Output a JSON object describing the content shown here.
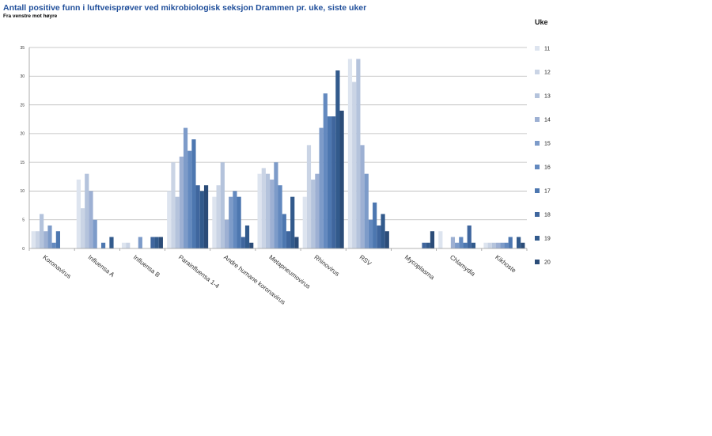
{
  "header": {
    "title": "Antall positive funn i luftveisprøver ved mikrobiologisk seksjon Drammen pr. uke, siste uker",
    "subtitle": "Fra venstre mot høyre"
  },
  "legend": {
    "title": "Uke"
  },
  "chart_data": {
    "type": "bar",
    "title": "Antall positive funn i luftveisprøver ved mikrobiologisk seksjon Drammen pr. uke, siste uker",
    "subtitle": "Fra venstre mot høyre",
    "xlabel": "",
    "ylabel": "",
    "ylim": [
      0,
      35
    ],
    "yticks": [
      0,
      5,
      10,
      15,
      20,
      25,
      30,
      35
    ],
    "grid": true,
    "legend_title": "Uke",
    "legend_position": "right",
    "categories": [
      "Koronavirus",
      "Influensa A",
      "Influensa B",
      "Parainfluensa 1-4",
      "Andre humane koronavirus",
      "Metapneumovirus",
      "Rhinovirus",
      "RSV",
      "Mycoplasma",
      "Chlamydia",
      "Kikhoste"
    ],
    "series": [
      {
        "name": "11",
        "color": "#dde4ef",
        "values": [
          3,
          12,
          1,
          10,
          9,
          13,
          9,
          33,
          0,
          3,
          1
        ]
      },
      {
        "name": "12",
        "color": "#cad4e5",
        "values": [
          3,
          7,
          1,
          15,
          11,
          14,
          18,
          29,
          0,
          0,
          1
        ]
      },
      {
        "name": "13",
        "color": "#b4c3dc",
        "values": [
          6,
          13,
          0,
          9,
          15,
          13,
          12,
          33,
          0,
          0,
          1
        ]
      },
      {
        "name": "14",
        "color": "#9db0d3",
        "values": [
          3,
          10,
          0,
          16,
          5,
          12,
          13,
          18,
          0,
          2,
          1
        ]
      },
      {
        "name": "15",
        "color": "#7d9bc9",
        "values": [
          4,
          5,
          2,
          21,
          9,
          15,
          21,
          13,
          0,
          1,
          1
        ]
      },
      {
        "name": "16",
        "color": "#6389bf",
        "values": [
          1,
          0,
          0,
          17,
          10,
          11,
          27,
          5,
          0,
          2,
          1
        ]
      },
      {
        "name": "17",
        "color": "#4d77b0",
        "values": [
          3,
          1,
          0,
          19,
          9,
          6,
          23,
          8,
          0,
          1,
          2
        ]
      },
      {
        "name": "18",
        "color": "#3f669e",
        "values": [
          0,
          0,
          2,
          11,
          2,
          3,
          23,
          4,
          1,
          4,
          0
        ]
      },
      {
        "name": "19",
        "color": "#325a8c",
        "values": [
          0,
          2,
          2,
          10,
          4,
          9,
          31,
          6,
          1,
          1,
          2
        ]
      },
      {
        "name": "20",
        "color": "#2b4c78",
        "values": [
          0,
          0,
          2,
          11,
          1,
          2,
          24,
          3,
          3,
          0,
          1
        ]
      }
    ]
  }
}
